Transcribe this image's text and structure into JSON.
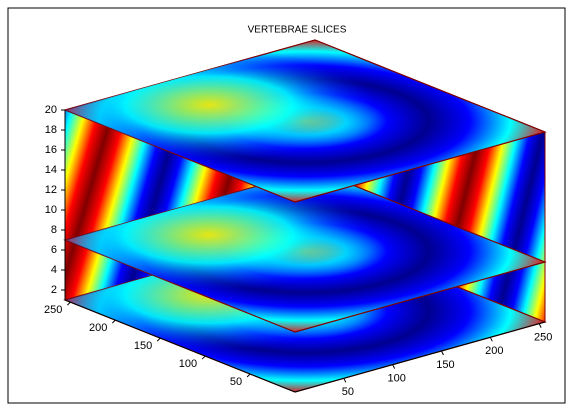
{
  "chart_data": {
    "type": "slice",
    "title": "VERTEBRAE SLICES",
    "xlim": [
      0,
      256
    ],
    "ylim": [
      0,
      256
    ],
    "zlim": [
      1,
      20
    ],
    "xticks": [
      50,
      100,
      150,
      200,
      250
    ],
    "yticks": [
      50,
      100,
      150,
      200,
      250
    ],
    "zticks": [
      2,
      4,
      6,
      8,
      10,
      12,
      14,
      16,
      18,
      20
    ],
    "slice_x": [
      256
    ],
    "slice_y": [
      256
    ],
    "slice_z": [
      1,
      7,
      20
    ],
    "colormap": [
      "#00008f",
      "#0000ff",
      "#00ffff",
      "#ffff00",
      "#ff0000",
      "#800000"
    ]
  }
}
